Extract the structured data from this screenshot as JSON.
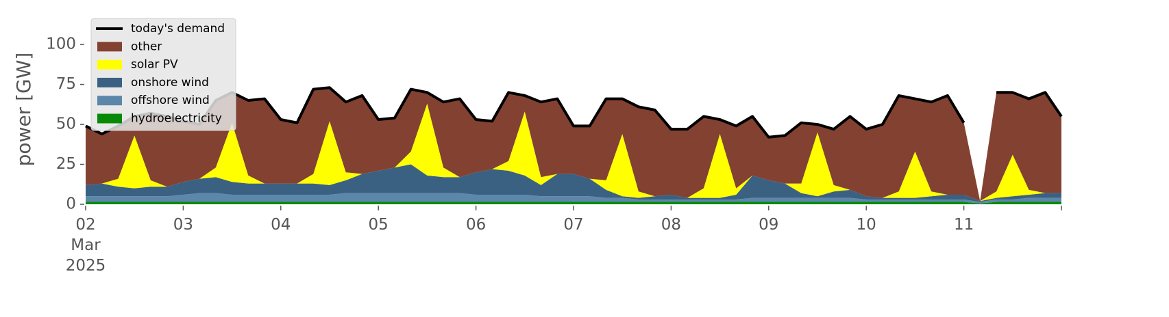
{
  "chart_data": {
    "type": "area",
    "stacked": true,
    "ylabel": "power [GW]",
    "ylim": [
      0,
      118
    ],
    "yticks": [
      0,
      25,
      50,
      75,
      100
    ],
    "xlim": [
      "2025-03-02 00:00",
      "2025-03-12 00:00"
    ],
    "xticks": [
      {
        "value": "2025-03-02 00:00",
        "label": "02\nMar\n2025"
      },
      {
        "value": "2025-03-03 00:00",
        "label": "03"
      },
      {
        "value": "2025-03-04 00:00",
        "label": "04"
      },
      {
        "value": "2025-03-05 00:00",
        "label": "05"
      },
      {
        "value": "2025-03-06 00:00",
        "label": "06"
      },
      {
        "value": "2025-03-07 00:00",
        "label": "07"
      },
      {
        "value": "2025-03-08 00:00",
        "label": "08"
      },
      {
        "value": "2025-03-09 00:00",
        "label": "09"
      },
      {
        "value": "2025-03-10 00:00",
        "label": "10"
      },
      {
        "value": "2025-03-11 00:00",
        "label": "11"
      },
      {
        "value": "2025-03-12 00:00",
        "label": null
      }
    ],
    "legend": "upper left",
    "grid": false,
    "x": [
      "2025-03-02 00:00",
      "2025-03-02 04:00",
      "2025-03-02 08:00",
      "2025-03-02 12:00",
      "2025-03-02 16:00",
      "2025-03-02 20:00",
      "2025-03-03 00:00",
      "2025-03-03 04:00",
      "2025-03-03 08:00",
      "2025-03-03 12:00",
      "2025-03-03 16:00",
      "2025-03-03 20:00",
      "2025-03-04 00:00",
      "2025-03-04 04:00",
      "2025-03-04 08:00",
      "2025-03-04 12:00",
      "2025-03-04 16:00",
      "2025-03-04 20:00",
      "2025-03-05 00:00",
      "2025-03-05 04:00",
      "2025-03-05 08:00",
      "2025-03-05 12:00",
      "2025-03-05 16:00",
      "2025-03-05 20:00",
      "2025-03-06 00:00",
      "2025-03-06 04:00",
      "2025-03-06 08:00",
      "2025-03-06 12:00",
      "2025-03-06 16:00",
      "2025-03-06 20:00",
      "2025-03-07 00:00",
      "2025-03-07 04:00",
      "2025-03-07 08:00",
      "2025-03-07 12:00",
      "2025-03-07 16:00",
      "2025-03-07 20:00",
      "2025-03-08 00:00",
      "2025-03-08 04:00",
      "2025-03-08 08:00",
      "2025-03-08 12:00",
      "2025-03-08 16:00",
      "2025-03-08 20:00",
      "2025-03-09 00:00",
      "2025-03-09 04:00",
      "2025-03-09 08:00",
      "2025-03-09 12:00",
      "2025-03-09 16:00",
      "2025-03-09 20:00",
      "2025-03-10 00:00",
      "2025-03-10 04:00",
      "2025-03-10 08:00",
      "2025-03-10 12:00",
      "2025-03-10 16:00",
      "2025-03-10 20:00",
      "2025-03-11 00:00",
      "2025-03-11 04:00",
      "2025-03-11 08:00",
      "2025-03-11 12:00",
      "2025-03-11 16:00",
      "2025-03-11 20:00",
      "2025-03-12 00:00"
    ],
    "series": [
      {
        "name": "today's demand",
        "type": "line",
        "color": "#000000",
        "values": [
          49,
          44,
          49,
          55,
          57,
          55,
          52,
          50,
          65,
          70,
          65,
          66,
          53,
          51,
          72,
          73,
          64,
          68,
          53,
          54,
          72,
          70,
          64,
          66,
          53,
          52,
          70,
          68,
          64,
          66,
          49,
          49,
          66,
          66,
          61,
          59,
          47,
          47,
          55,
          53,
          49,
          55,
          42,
          43,
          51,
          50,
          47,
          55,
          47,
          50,
          68,
          66,
          64,
          68,
          51,
          null,
          70,
          70,
          66,
          70,
          55
        ]
      },
      {
        "name": "other",
        "color": "#834132",
        "values": [
          37,
          31,
          33,
          12,
          42,
          44,
          38,
          34,
          42,
          19,
          47,
          53,
          40,
          38,
          53,
          21,
          44,
          49,
          32,
          31,
          39,
          7,
          41,
          49,
          33,
          30,
          43,
          10,
          47,
          47,
          30,
          33,
          51,
          22,
          53,
          54,
          41,
          43,
          45,
          9,
          39,
          37,
          27,
          30,
          38,
          5,
          35,
          46,
          42,
          46,
          60,
          33,
          56,
          62,
          45,
          0,
          62,
          39,
          57,
          63,
          48
        ]
      },
      {
        "name": "solar PV",
        "color": "#ffff00",
        "values": [
          0,
          0,
          5,
          33,
          4,
          0,
          0,
          0,
          6,
          37,
          5,
          0,
          0,
          0,
          6,
          40,
          5,
          0,
          0,
          0,
          8,
          45,
          6,
          0,
          0,
          0,
          6,
          40,
          5,
          0,
          0,
          0,
          6,
          39,
          4,
          0,
          0,
          0,
          6,
          40,
          4,
          0,
          0,
          0,
          6,
          40,
          4,
          0,
          0,
          0,
          4,
          29,
          3,
          0,
          0,
          0,
          4,
          26,
          3,
          0,
          0
        ]
      },
      {
        "name": "onshore wind",
        "color": "#3b6182",
        "values": [
          7,
          8,
          6,
          5,
          6,
          6,
          8,
          9,
          10,
          8,
          7,
          7,
          7,
          7,
          7,
          6,
          8,
          12,
          14,
          16,
          18,
          11,
          10,
          10,
          14,
          16,
          15,
          12,
          7,
          14,
          14,
          11,
          5,
          1,
          1,
          2,
          3,
          1,
          1,
          1,
          3,
          14,
          11,
          9,
          3,
          1,
          4,
          5,
          2,
          1,
          1,
          1,
          2,
          3,
          3,
          0.5,
          1,
          2,
          2,
          3,
          3
        ]
      },
      {
        "name": "offshore wind",
        "color": "#5d87aa",
        "values": [
          3.5,
          3.5,
          3.5,
          3.5,
          3.5,
          3.5,
          4.5,
          5.5,
          5.5,
          4.5,
          4.5,
          4.5,
          4.5,
          4.5,
          4.5,
          4.5,
          5.5,
          5.5,
          5.5,
          5.5,
          5.5,
          5.5,
          5.5,
          5.5,
          4.5,
          4.5,
          4.5,
          4.5,
          3.5,
          3.5,
          3.5,
          3.5,
          2.5,
          2.5,
          1.5,
          1.5,
          1.5,
          1.5,
          1.5,
          1.5,
          1.5,
          2.5,
          2.5,
          2.5,
          2.5,
          2.5,
          2.5,
          2.5,
          1.5,
          1.5,
          1.5,
          1.5,
          1.5,
          1.5,
          1.5,
          1,
          1.5,
          1.5,
          2.5,
          2.5,
          2.5
        ]
      },
      {
        "name": "hydroelectricity",
        "color": "#088a08",
        "values": [
          1.5,
          1.5,
          1.5,
          1.5,
          1.5,
          1.5,
          1.5,
          1.5,
          1.5,
          1.5,
          1.5,
          1.5,
          1.5,
          1.5,
          1.5,
          1.5,
          1.5,
          1.5,
          1.5,
          1.5,
          1.5,
          1.5,
          1.5,
          1.5,
          1.5,
          1.5,
          1.5,
          1.5,
          1.5,
          1.5,
          1.5,
          1.5,
          1.5,
          1.5,
          1.5,
          1.5,
          1.5,
          1.5,
          1.5,
          1.5,
          1.5,
          1.5,
          1.5,
          1.5,
          1.5,
          1.5,
          1.5,
          1.5,
          1.5,
          1.5,
          1.5,
          1.5,
          1.5,
          1.5,
          1.5,
          0.5,
          1.5,
          1.5,
          1.5,
          1.5,
          1.5
        ]
      }
    ]
  }
}
